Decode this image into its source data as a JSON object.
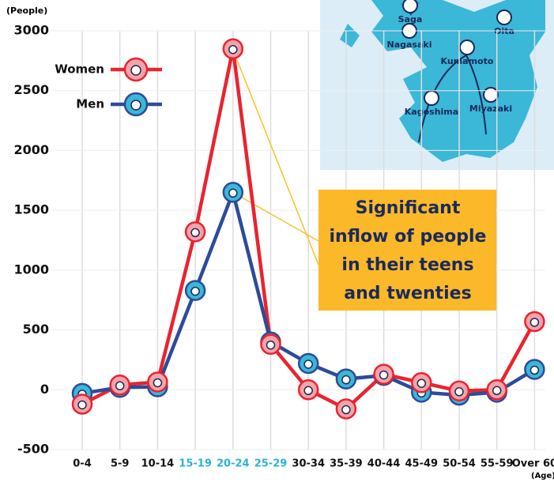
{
  "chart_data": {
    "type": "line",
    "y_label": "(People)",
    "x_label": "(Age)",
    "categories": [
      "0-4",
      "5-9",
      "10-14",
      "15-19",
      "20-24",
      "25-29",
      "30-34",
      "35-39",
      "40-44",
      "45-49",
      "50-54",
      "55-59",
      "Over 60"
    ],
    "category_colors": [
      "#111",
      "#111",
      "#111",
      "#2bb3d6",
      "#2bb3d6",
      "#2bb3d6",
      "#111",
      "#111",
      "#111",
      "#111",
      "#111",
      "#111",
      "#111"
    ],
    "series": [
      {
        "name": "Women",
        "color": "#e8242f",
        "marker_color": "#f5a3aa",
        "values": [
          -120,
          40,
          65,
          1320,
          2850,
          380,
          0,
          -160,
          130,
          60,
          -10,
          0,
          570
        ]
      },
      {
        "name": "Men",
        "color": "#2d4b9a",
        "marker_color": "#3bb7d8",
        "values": [
          -30,
          20,
          25,
          830,
          1650,
          400,
          220,
          90,
          120,
          -20,
          -45,
          -20,
          170
        ]
      }
    ],
    "ylim": [
      -500,
      3000
    ],
    "yticks": [
      -500,
      0,
      500,
      1000,
      1500,
      2000,
      2500,
      3000
    ],
    "grid": true,
    "annotation": [
      "Significant",
      "inflow of people",
      "in their teens",
      "and twenties"
    ],
    "map_labels": [
      "Saga",
      "Oita",
      "Nagasaki",
      "Kumamoto",
      "Kagoshima",
      "Miyazaki"
    ]
  }
}
